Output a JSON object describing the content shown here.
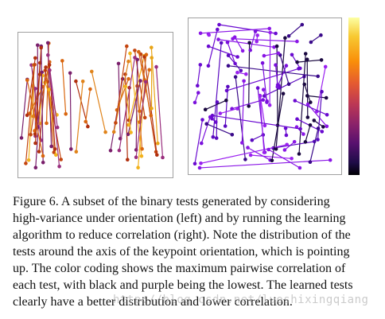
{
  "figure": {
    "colorbar_gradient": [
      "#fcffa4",
      "#f8c932",
      "#f98e09",
      "#e45a31",
      "#bc3754",
      "#8a226a",
      "#57106e",
      "#1f0c48",
      "#000004"
    ],
    "left_panel_colors": [
      "#e8a417",
      "#d9660f",
      "#c4450f",
      "#f2b21c",
      "#b1300f",
      "#7a1f6b",
      "#9a2f7e",
      "#e0831a"
    ],
    "right_panel_colors": [
      "#8a16e6",
      "#7a10dc",
      "#6a0ad0",
      "#5a0ac0",
      "#3a0a8a",
      "#1a0840",
      "#9a20f0"
    ]
  },
  "caption": {
    "lines": [
      "Figure 6. A subset of the binary tests generated by considering",
      "high-variance under orientation (left) and by running the learning",
      "algorithm to reduce correlation (right). Note the distribution of the",
      "tests around the axis of the keypoint orientation, which is pointing",
      "up. The color coding shows the maximum pairwise correlation of",
      "each test, with black and purple being the lowest. The learned tests",
      "clearly have a better distribution and lower correlation."
    ]
  },
  "watermark": "http://blog.csdn.net/luoshixingqiang"
}
